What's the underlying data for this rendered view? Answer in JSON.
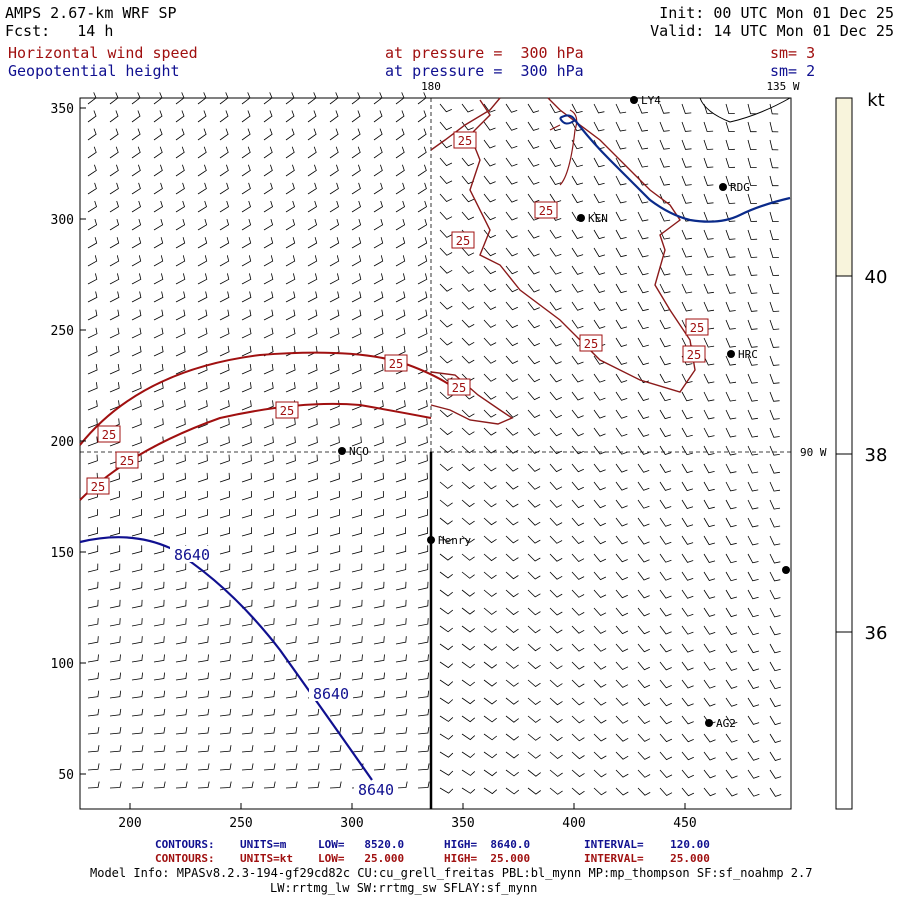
{
  "header": {
    "model": "AMPS 2.67-km WRF SP",
    "forecast": "Fcst:   14 h",
    "init": "Init: 00 UTC Mon 01 Dec 25",
    "valid": "Valid: 14 UTC Mon 01 Dec 25",
    "field1_name": "Horizontal wind speed",
    "field1_level": "at pressure =  300 hPa",
    "field1_sm": "sm= 3",
    "field2_name": "Geopotential height",
    "field2_level": "at pressure =  300 hPa",
    "field2_sm": "sm= 2"
  },
  "colors": {
    "wind_contour": "#a01010",
    "height_contour": "#101090",
    "coast": "#8b1a1a",
    "ice_edge": "#0a2a8a",
    "barb": "#000000",
    "colorbar_fill": "#f8f4dc"
  },
  "map": {
    "x_ticks": [
      "200",
      "250",
      "300",
      "350",
      "400",
      "450"
    ],
    "y_ticks": [
      "50",
      "100",
      "150",
      "200",
      "250",
      "300",
      "350"
    ],
    "meridian_labels": [
      "180",
      "135 W",
      "90 W"
    ],
    "wind_contour_labels": [
      "25",
      "25",
      "25",
      "25",
      "25",
      "25",
      "25",
      "25",
      "25",
      "25",
      "25",
      "25"
    ],
    "height_contour_labels": [
      "8640",
      "8640",
      "8640"
    ],
    "stations": [
      {
        "name": "LY4"
      },
      {
        "name": "RDG"
      },
      {
        "name": "KEN"
      },
      {
        "name": "HRC"
      },
      {
        "name": "NCO"
      },
      {
        "name": "Henry"
      },
      {
        "name": "AG2"
      },
      {
        "name": ""
      }
    ]
  },
  "colorbar": {
    "unit": "kt",
    "ticks": [
      "40",
      "38",
      "36"
    ]
  },
  "footer": {
    "line1_label": "CONTOURS:",
    "line1_units": "UNITS=m",
    "line1_low": "LOW=   8520.0",
    "line1_high": "HIGH=  8640.0",
    "line1_interval": "INTERVAL=    120.00",
    "line2_label": "CONTOURS:",
    "line2_units": "UNITS=kt",
    "line2_low": "LOW=   25.000",
    "line2_high": "HIGH=  25.000",
    "line2_interval": "INTERVAL=    25.000",
    "model_info": "Model Info: MPASv8.2.3-194-gf29cd82c CU:cu_grell_freitas PBL:bl_mynn MP:mp_thompson SF:sf_noahmp 2.7",
    "model_info2": "LW:rrtmg_lw SW:rrtmg_sw SFLAY:sf_mynn"
  }
}
